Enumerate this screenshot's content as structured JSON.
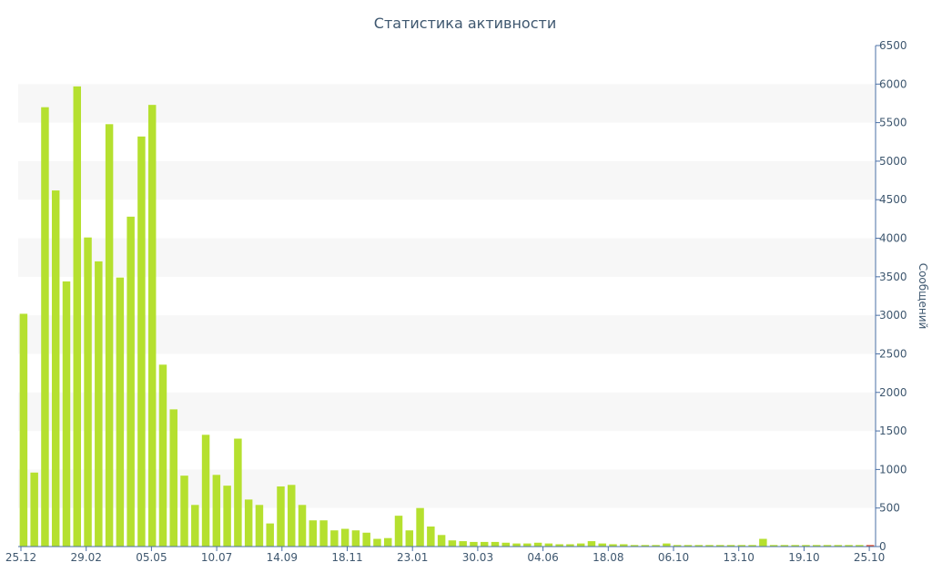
{
  "chart_data": {
    "type": "bar",
    "title": "Статистика активности",
    "ylabel": "Сообщений",
    "xlabel": "",
    "ylim": [
      0,
      6500
    ],
    "y_ticks": [
      0,
      500,
      1000,
      1500,
      2000,
      2500,
      3000,
      3500,
      4000,
      4500,
      5000,
      5500,
      6000,
      6500
    ],
    "y_axis_side": "right",
    "grid": "alternating horizontal bands",
    "x_tick_labels": [
      "25.12",
      "29.02",
      "05.05",
      "10.07",
      "14.09",
      "18.11",
      "23.01",
      "30.03",
      "04.06",
      "18.08",
      "06.10",
      "13.10",
      "19.10",
      "25.10"
    ],
    "bar_color": "#b5e02f",
    "last_bar_color": "#e0502f",
    "values": [
      3020,
      960,
      5700,
      4620,
      3440,
      5970,
      4010,
      3700,
      5480,
      3490,
      4280,
      5320,
      5730,
      2360,
      1780,
      920,
      540,
      1450,
      930,
      790,
      1400,
      610,
      540,
      300,
      780,
      800,
      540,
      340,
      340,
      210,
      230,
      210,
      180,
      100,
      110,
      400,
      210,
      500,
      260,
      150,
      80,
      70,
      60,
      60,
      60,
      50,
      40,
      40,
      50,
      40,
      30,
      30,
      40,
      70,
      40,
      30,
      30,
      20,
      20,
      20,
      40,
      20,
      20,
      20,
      20,
      20,
      20,
      20,
      20,
      100,
      20,
      20,
      20,
      20,
      20,
      20,
      20,
      20,
      20,
      20
    ]
  }
}
